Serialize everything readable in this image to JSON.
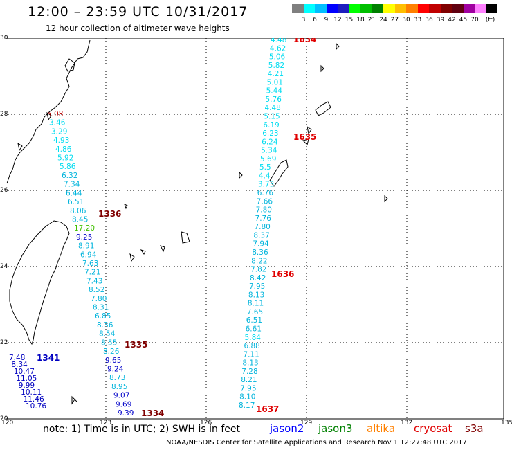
{
  "header": {
    "title": "12:00 – 23:59 UTC 10/31/2017",
    "subtitle": "12 hour collection of altimeter wave heights"
  },
  "colorbar": {
    "colors": [
      "#7f7f7f",
      "#00ffff",
      "#00bfff",
      "#0000ff",
      "#1e1ebf",
      "#00ff00",
      "#00bf00",
      "#008000",
      "#ffff00",
      "#ffbf00",
      "#ff8000",
      "#ff0000",
      "#c00000",
      "#800000",
      "#600010",
      "#a000a0",
      "#ff80ff",
      "#000000"
    ],
    "labels": [
      "3",
      "6",
      "9",
      "12",
      "15",
      "18",
      "21",
      "24",
      "27",
      "30",
      "33",
      "36",
      "39",
      "42",
      "45",
      "70",
      "(ft)"
    ]
  },
  "axes": {
    "lat_labels": [
      "30",
      "28",
      "26",
      "24",
      "22",
      "20"
    ],
    "lon_labels": [
      "120",
      "123",
      "126",
      "129",
      "132",
      "135"
    ]
  },
  "tracks": [
    {
      "id": "A",
      "color": "#00c8e6",
      "values": [
        "4.48",
        "4.62",
        "5.06",
        "5.82",
        "4.21",
        "5.01",
        "5.44",
        "5.76",
        "4.48",
        "5.15",
        "6.19",
        "6.23",
        "6.24",
        "5.34",
        "5.69",
        "5.5",
        "4.4",
        "3.73",
        "6.76",
        "7.66",
        "7.80",
        "7.76",
        "7.80",
        "8.37",
        "7.94",
        "8.36",
        "8.22",
        "7.82",
        "8.42",
        "7.95",
        "8.13",
        "8.11",
        "7.65",
        "6.51",
        "6.61",
        "5.84",
        "6.88",
        "7.11",
        "8.13",
        "7.28",
        "8.21",
        "7.95",
        "8.10",
        "8.17"
      ]
    },
    {
      "id": "B",
      "color": "#00c8e6",
      "values": [
        "5.08",
        "3.46",
        "3.29",
        "4.93",
        "4.86",
        "5.92",
        "5.86",
        "6.32",
        "7.34",
        "6.44",
        "6.51",
        "8.06",
        "8.45",
        "17.20",
        "9.25",
        "8.91",
        "6.94",
        "7.63",
        "7.21",
        "7.43",
        "8.52",
        "7.80",
        "8.31",
        "6.85",
        "8.36",
        "8.54",
        "8.55",
        "8.26",
        "9.65",
        "9.24",
        "8.73",
        "8.95",
        "9.07",
        "9.69",
        "9.39"
      ]
    },
    {
      "id": "C",
      "color": "#0000c0",
      "values": [
        "7.48",
        "8.34",
        "10.47",
        "11.05",
        "9.99",
        "10.11",
        "11.46",
        "10.76"
      ]
    }
  ],
  "time_labels": [
    {
      "text": "1634",
      "color": "#e00000"
    },
    {
      "text": "1635",
      "color": "#e00000"
    },
    {
      "text": "1636",
      "color": "#e00000"
    },
    {
      "text": "1637",
      "color": "#e00000"
    },
    {
      "text": "1336",
      "color": "#800000"
    },
    {
      "text": "1335",
      "color": "#800000"
    },
    {
      "text": "1334",
      "color": "#800000"
    },
    {
      "text": "1341",
      "color": "#0000c0"
    }
  ],
  "footer": {
    "note": "note: 1) Time is in UTC; 2) SWH is in feet",
    "satellites": [
      {
        "name": "jason2",
        "color": "#0000ff"
      },
      {
        "name": "jason3",
        "color": "#008000"
      },
      {
        "name": "altika",
        "color": "#ff8000"
      },
      {
        "name": "cryosat",
        "color": "#e00000"
      },
      {
        "name": "s3a",
        "color": "#800000"
      }
    ],
    "credit": "NOAA/NESDIS Center for Satellite Applications and Research    Nov  1 12:27:48 UTC 2017"
  }
}
